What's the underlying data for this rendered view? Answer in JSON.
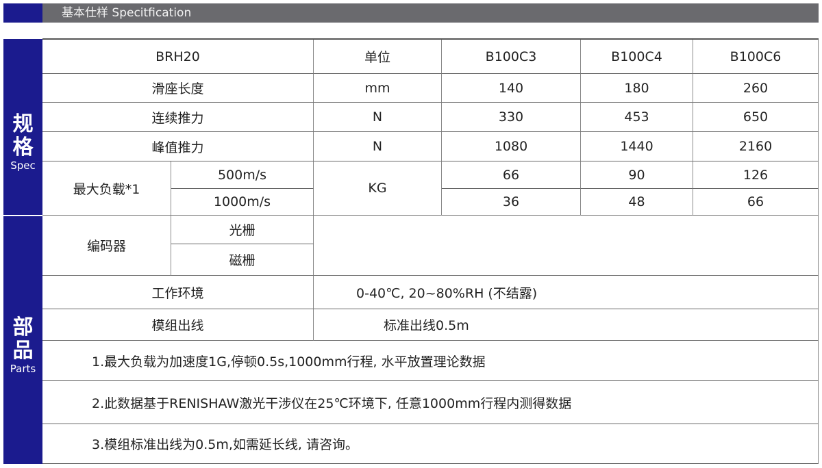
{
  "header": {
    "title": "基本仕样 Specitfication"
  },
  "side": {
    "spec_cn1": "规",
    "spec_cn2": "格",
    "spec_en": "Spec",
    "parts_cn1": "部",
    "parts_cn2": "品",
    "parts_en": "Parts"
  },
  "table": {
    "headers": [
      "BRH20",
      "单位",
      "B100C3",
      "B100C4",
      "B100C6"
    ],
    "rows": [
      {
        "label": "滑座长度",
        "unit": "mm",
        "values": [
          "140",
          "180",
          "260"
        ]
      },
      {
        "label": "连续推力",
        "unit": "N",
        "values": [
          "330",
          "453",
          "650"
        ]
      },
      {
        "label": "峰值推力",
        "unit": "N",
        "values": [
          "1080",
          "1440",
          "2160"
        ]
      }
    ],
    "max_load": {
      "label": "最大负载*1",
      "unit": "KG",
      "sub": [
        {
          "label": "500m/s",
          "values": [
            "66",
            "90",
            "126"
          ]
        },
        {
          "label": "1000m/s",
          "values": [
            "36",
            "48",
            "66"
          ]
        }
      ]
    },
    "encoder": {
      "label": "编码器",
      "options": [
        "光栅",
        "磁栅"
      ]
    },
    "environment": {
      "label": "工作环境",
      "value": "0-40℃, 20~80%RH (不结露)"
    },
    "cable": {
      "label": "模组出线",
      "value": "标准出线0.5m"
    },
    "notes": [
      "1.最大负载为加速度1G,停顿0.5s,1000mm行程, 水平放置理论数据",
      "2.此数据基于RENISHAW激光干涉仪在25℃环境下, 任意1000mm行程内测得数据",
      "3.模组标准出线为0.5m,如需延长线, 请咨询。"
    ]
  }
}
